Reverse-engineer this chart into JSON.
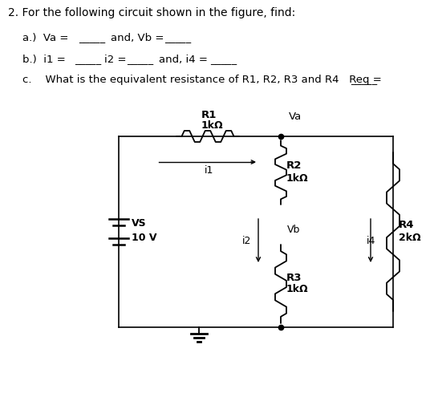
{
  "bg_color": "#ffffff",
  "text_color": "#000000",
  "title": "2. For the following circuit shown in the figure, find:",
  "line_a_prefix": "a.)  Va =",
  "line_a_blank1": "_____",
  "line_a_mid": "and, Vb =",
  "line_a_blank2": "_____",
  "line_b_prefix": "b.)  i1 =",
  "line_b_blank1": "_____",
  "line_b_mid1": "i2 =",
  "line_b_blank2": "_____",
  "line_b_mid2": "and, i4 =",
  "line_b_blank3": "_____",
  "line_c": "c.    What is the equivalent resistance of R1, R2, R3 and R4   Req =",
  "line_c_blank": "_____",
  "vs_label": "VS",
  "vs_value": "10 V",
  "r1_label": "R1",
  "r1_value": "1kΩ",
  "r2_label": "R2",
  "r2_value": "1kΩ",
  "r3_label": "R3",
  "r3_value": "1kΩ",
  "r4_label": "R4",
  "r4_value": "2kΩ",
  "i1_label": "i1",
  "i2_label": "i2",
  "i4_label": "i4",
  "va_label": "Va",
  "vb_label": "Vb",
  "font_size_title": 10,
  "font_size_text": 9.5,
  "font_size_circuit": 8.5,
  "font_size_circuit_bold": 9
}
